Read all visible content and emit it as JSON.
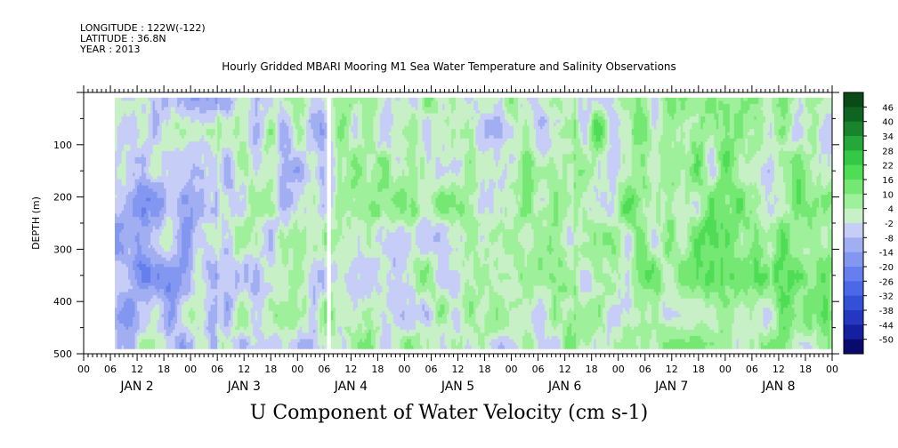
{
  "header": {
    "longitude": "LONGITUDE : 122W(-122)",
    "latitude": "LATITUDE : 36.8N",
    "year": "YEAR : 2013"
  },
  "title": "Hourly Gridded MBARI Mooring M1 Sea Water Temperature and Salinity Observations",
  "bottom_title": "U Component of Water Velocity (cm s-1)",
  "chart_data": {
    "type": "heatmap",
    "title": "Hourly Gridded MBARI Mooring M1 Sea Water Temperature and Salinity Observations",
    "ylabel": "DEPTH (m)",
    "xlabel": "",
    "variable": "U Component of Water Velocity (cm s-1)",
    "x_range_hours": [
      0,
      168
    ],
    "y_range_depth_m": [
      0,
      500
    ],
    "y_inverted": true,
    "y_ticks": [
      100,
      200,
      300,
      400,
      500
    ],
    "x_hour_tick_labels": [
      "00",
      "06",
      "12",
      "18",
      "00",
      "06",
      "12",
      "18",
      "00",
      "06",
      "12",
      "18",
      "00",
      "06",
      "12",
      "18",
      "00",
      "06",
      "12",
      "18",
      "00",
      "06",
      "12",
      "18",
      "00",
      "06",
      "12",
      "18",
      "00"
    ],
    "day_labels": [
      "JAN  2",
      "JAN  3",
      "JAN  4",
      "JAN  5",
      "JAN  6",
      "JAN  7",
      "JAN  8"
    ],
    "colorbar_levels": [
      "46",
      "40",
      "34",
      "28",
      "22",
      "16",
      "10",
      "4",
      "-2",
      "-8",
      "-14",
      "-20",
      "-26",
      "-32",
      "-38",
      "-44",
      "-50"
    ],
    "color_min": -50,
    "color_max": 50,
    "data_depth_range_m": [
      10,
      490
    ],
    "data_start_hour": 7,
    "data_end_hour": 168,
    "missing_data_hours": [
      [
        54.5,
        55.5
      ]
    ],
    "dominant_pattern": [
      {
        "period": "JAN 2 06 - JAN 3 06",
        "u_range": [
          -14,
          6
        ]
      },
      {
        "period": "JAN 3 06 - JAN 4 06",
        "u_range": [
          -10,
          10
        ]
      },
      {
        "period": "JAN 4 06 - JAN 6 12",
        "u_range": [
          -6,
          14
        ]
      },
      {
        "period": "JAN 6 12 - JAN 8 24",
        "u_range": [
          -8,
          20
        ]
      }
    ],
    "grid": false,
    "legend": "colorbar-right"
  },
  "colors": {
    "palette": [
      "#0a0a6e",
      "#1520a0",
      "#2537c0",
      "#3550d8",
      "#4a68e8",
      "#6580ee",
      "#8397f0",
      "#a2aef2",
      "#c6cdf6",
      "#c8f0c6",
      "#9ff09a",
      "#74e873",
      "#4fdd55",
      "#33c845",
      "#25a83a",
      "#18852d",
      "#0f6420",
      "#0a4a16"
    ],
    "accent_white": "#ffffff"
  }
}
